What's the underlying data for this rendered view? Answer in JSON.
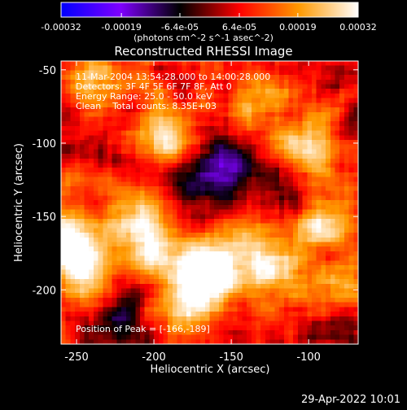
{
  "chart_data": {
    "type": "heatmap",
    "title": "Reconstructed RHESSI Image",
    "xlabel": "Heliocentric X (arcsec)",
    "ylabel": "Heliocentric Y (arcsec)",
    "xlim": [
      -260,
      -68
    ],
    "ylim": [
      -237,
      -44
    ],
    "x_ticks": [
      -250,
      -200,
      -150,
      -100
    ],
    "y_ticks": [
      -50,
      -100,
      -150,
      -200
    ],
    "colorbar": {
      "min": -0.00032,
      "max": 0.00032,
      "tick_values": [
        -0.00032,
        -0.00019,
        -6.4e-05,
        6.4e-05,
        0.00019,
        0.00032
      ],
      "tick_labels": [
        "-0.00032",
        "-0.00019",
        "-6.4e-05",
        "6.4e-05",
        "0.00019",
        "0.00032"
      ],
      "units_label": "(photons cm^-2 s^-1 asec^-2)",
      "stops": [
        "#0000ff",
        "#7f00ff",
        "#000000",
        "#ff0000",
        "#ff9900",
        "#ffffff"
      ]
    },
    "annotations": [
      "11-Mar-2004 13:54:28.000 to 14:00:28.000",
      "Detectors: 3F 4F 5F 6F 7F 8F, Att 0",
      "Energy Range: 25.0 - 50.0 keV",
      "Clean    Total counts: 8.35E+03"
    ],
    "peak_label": "Position of Peak = [-166,-189]",
    "peak": {
      "x": -166,
      "y": -189
    },
    "sources": [
      {
        "x": -166,
        "y": -189,
        "amp": 1.0
      },
      {
        "x": -255,
        "y": -170,
        "amp": 0.85
      },
      {
        "x": -240,
        "y": -195,
        "amp": 0.7
      },
      {
        "x": -92,
        "y": -150,
        "amp": 0.85
      },
      {
        "x": -100,
        "y": -105,
        "amp": 0.6
      },
      {
        "x": -190,
        "y": -95,
        "amp": 0.65
      },
      {
        "x": -210,
        "y": -150,
        "amp": 0.6
      },
      {
        "x": -120,
        "y": -190,
        "amp": 0.55
      },
      {
        "x": -140,
        "y": -170,
        "amp": 0.5
      },
      {
        "x": -240,
        "y": -60,
        "amp": 0.45
      },
      {
        "x": -180,
        "y": -215,
        "amp": 0.45
      },
      {
        "x": -200,
        "y": -175,
        "amp": 0.5
      },
      {
        "x": -82,
        "y": -200,
        "amp": 0.5
      },
      {
        "x": -130,
        "y": -75,
        "amp": 0.45
      }
    ],
    "sinks": [
      {
        "x": -155,
        "y": -110,
        "amp": 0.5
      },
      {
        "x": -225,
        "y": -212,
        "amp": 0.45
      },
      {
        "x": -110,
        "y": -135,
        "amp": 0.45
      },
      {
        "x": -170,
        "y": -128,
        "amp": 0.35
      },
      {
        "x": -80,
        "y": -225,
        "amp": 0.4
      }
    ]
  },
  "footer": {
    "date": "29-Apr-2022 10:01"
  }
}
